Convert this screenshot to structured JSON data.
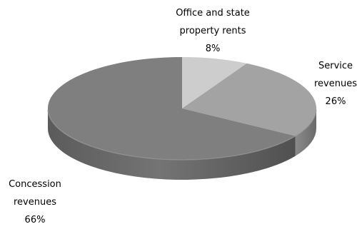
{
  "chart_data": {
    "type": "pie",
    "style": "3d-tilted",
    "title": "",
    "slices": [
      {
        "label_lines": [
          "Office and state",
          "property rents"
        ],
        "value": 8,
        "value_text": "8%",
        "color": "#cdcdcd"
      },
      {
        "label_lines": [
          "Service",
          "revenues"
        ],
        "value": 26,
        "value_text": "26%",
        "color": "#a3a3a3"
      },
      {
        "label_lines": [
          "Concession",
          "revenues"
        ],
        "value": 66,
        "value_text": "66%",
        "color": "#7f7f7f"
      }
    ],
    "start_angle": "12 o'clock",
    "direction": "clockwise",
    "legend": "none",
    "data_labels": "outside"
  }
}
